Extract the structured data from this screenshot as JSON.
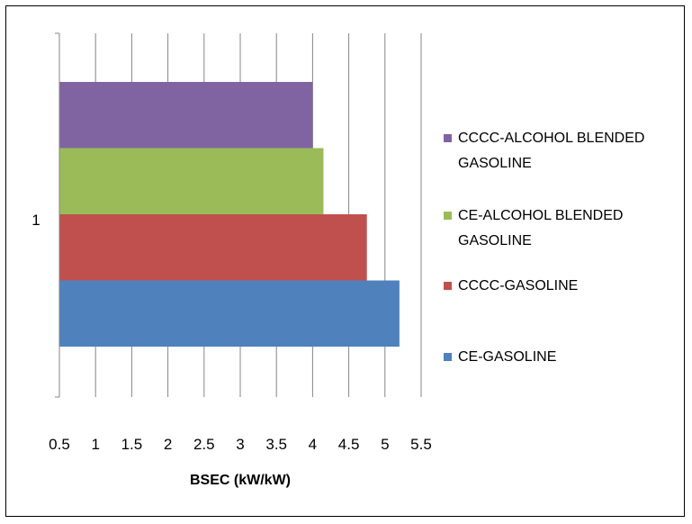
{
  "chart_data": {
    "type": "bar",
    "orientation": "horizontal",
    "categories": [
      "1"
    ],
    "series": [
      {
        "name": "CE-GASOLINE",
        "values": [
          5.2
        ],
        "color": "#4f81bd"
      },
      {
        "name": "CCCC-GASOLINE",
        "values": [
          4.75
        ],
        "color": "#c0504d"
      },
      {
        "name": "CE-ALCOHOL BLENDED GASOLINE",
        "values": [
          4.15
        ],
        "color": "#9bbb59"
      },
      {
        "name": "CCCC-ALCOHOL BLENDED GASOLINE",
        "values": [
          4.0
        ],
        "color": "#8064a2"
      }
    ],
    "xlabel": "BSEC (kW/kW)",
    "ylabel": "",
    "xlim": [
      0.5,
      5.5
    ],
    "xticks": [
      "0.5",
      "1",
      "1.5",
      "2",
      "2.5",
      "3",
      "3.5",
      "4",
      "4.5",
      "5",
      "5.5"
    ],
    "grid": "vertical",
    "legend_position": "right",
    "legend_order": [
      "CCCC-ALCOHOL BLENDED GASOLINE",
      "CE-ALCOHOL BLENDED GASOLINE",
      "CCCC-GASOLINE",
      "CE-GASOLINE"
    ]
  }
}
